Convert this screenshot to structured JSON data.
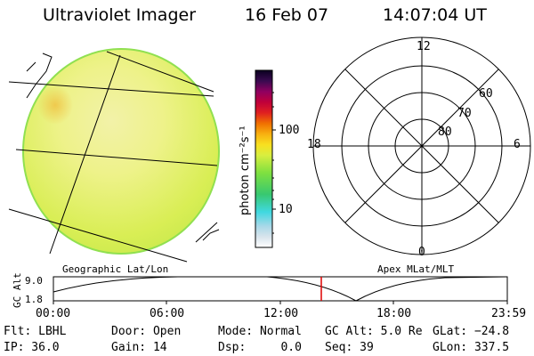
{
  "header": {
    "instrument": "Ultraviolet Imager",
    "date": "16 Feb 07",
    "time": "14:07:04 UT"
  },
  "colorbar": {
    "unit_label": "photon cm⁻²s⁻¹",
    "ticks": [
      "100",
      "10"
    ]
  },
  "map": {
    "left_caption": "Geographic Lat/Lon",
    "right_caption": "Apex MLat/MLT"
  },
  "polar": {
    "mlt_labels": {
      "top": "12",
      "bottom": "0",
      "left": "18",
      "right": "6"
    },
    "lat_labels": [
      "60",
      "70",
      "80"
    ]
  },
  "altitude_strip": {
    "ylabel": "GC Alt",
    "yticks": [
      "9.0",
      "1.8"
    ],
    "xticks": [
      "00:00",
      "06:00",
      "12:00",
      "18:00",
      "23:59"
    ],
    "marker_color": "#dd0000"
  },
  "info": {
    "row1": [
      "Flt: LBHL",
      "Door: Open",
      "Mode: Normal",
      "GC Alt: 5.0 Re",
      "GLat: −24.8"
    ],
    "row2": [
      "IP: 36.0",
      "Gain: 14",
      "Dsp:     0.0",
      "Seq: 39",
      "GLon: 337.5"
    ]
  }
}
